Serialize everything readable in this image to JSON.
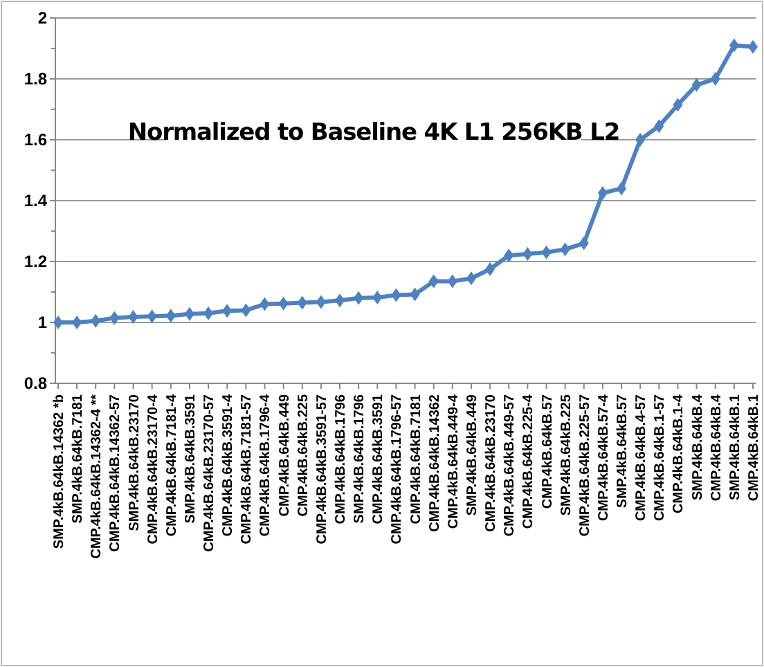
{
  "chart_data": {
    "type": "line",
    "title": "Normalized to Baseline 4K L1 256KB L2",
    "categories": [
      "SMP.4kB.64kB.14362 *b",
      "SMP.4kB.64kB.7181",
      "CMP.4kB.64kB.14362-4 **",
      "CMP.4kB.64kB.14362-57",
      "SMP.4kB.64kB.23170",
      "CMP.4kB.64kB.23170-4",
      "CMP.4kB.64kB.7181-4",
      "SMP.4kB.64kB.3591",
      "CMP.4kB.64kB.23170-57",
      "CMP.4kB.64kB.3591-4",
      "CMP.4kB.64kB.7181-57",
      "CMP.4kB.64kB.1796-4",
      "CMP.4kB.64kB.449",
      "CMP.4kB.64kB.225",
      "CMP.4kB.64kB.3591-57",
      "CMP.4kB.64kB.1796",
      "SMP.4kB.64kB.1796",
      "CMP.4kB.64kB.3591",
      "CMP.4kB.64kB.1796-57",
      "CMP.4kB.64kB.7181",
      "CMP.4kB.64kB.14362",
      "CMP.4kB.64kB.449-4",
      "SMP.4kB.64kB.449",
      "CMP.4kB.64kB.23170",
      "CMP.4kB.64kB.449-57",
      "CMP.4kB.64kB.225-4",
      "CMP.4kB.64kB.57",
      "SMP.4kB.64kB.225",
      "CMP.4kB.64kB.225-57",
      "CMP.4kB.64kB.57-4",
      "SMP.4kB.64kB.57",
      "CMP.4kB.64kB.4-57",
      "CMP.4kB.64kB.1-57",
      "CMP.4kB.64kB.1-4",
      "SMP.4kB.64kB.4",
      "CMP.4kB.64kB.4",
      "SMP.4kB.64kB.1",
      "CMP.4kB.64kB.1"
    ],
    "series": [
      {
        "color": "#4f81bd",
        "values": [
          1.0,
          1.0,
          1.005,
          1.015,
          1.018,
          1.02,
          1.022,
          1.028,
          1.03,
          1.038,
          1.04,
          1.06,
          1.062,
          1.065,
          1.067,
          1.072,
          1.08,
          1.082,
          1.09,
          1.092,
          1.135,
          1.135,
          1.145,
          1.175,
          1.22,
          1.225,
          1.23,
          1.24,
          1.26,
          1.425,
          1.44,
          1.6,
          1.645,
          1.715,
          1.78,
          1.8,
          1.91,
          1.905
        ]
      }
    ],
    "ylim": [
      0.8,
      2
    ],
    "yticks": [
      0.8,
      1,
      1.2,
      1.4,
      1.6,
      1.8,
      2
    ],
    "grid": "y",
    "marker": "diamond",
    "line_style": "solid"
  }
}
